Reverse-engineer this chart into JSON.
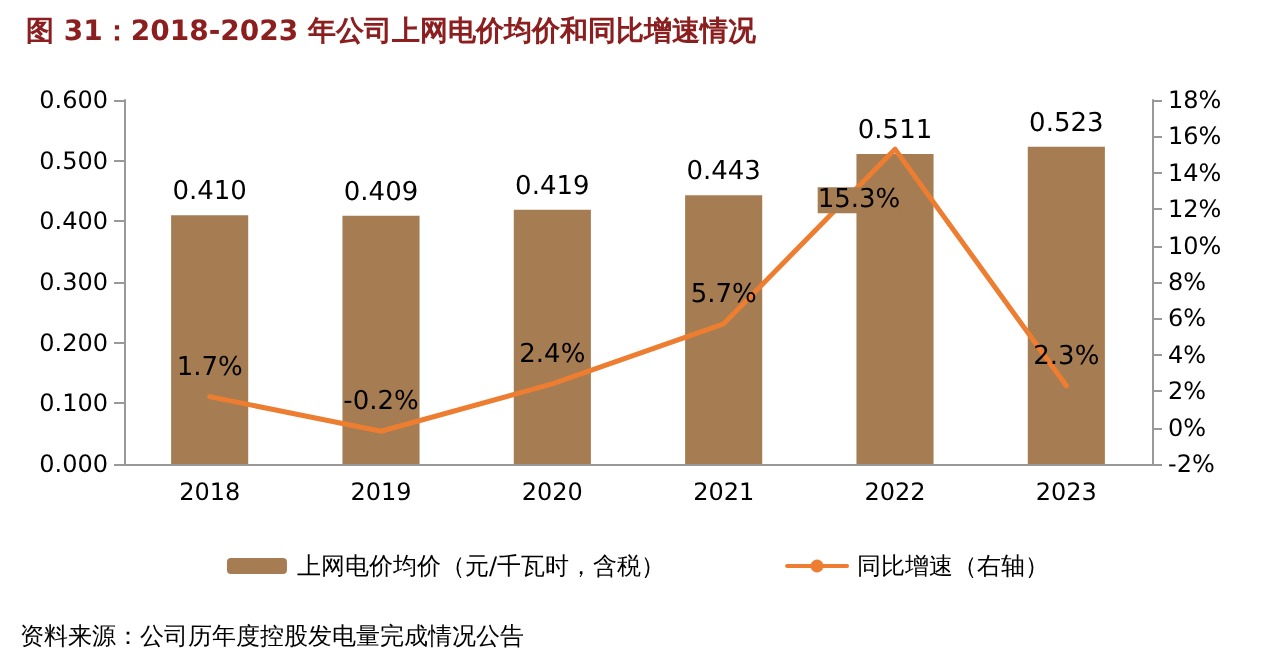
{
  "chart_data": {
    "type": "bar",
    "title": "图 31：2018-2023 年公司上网电价均价和同比增速情况",
    "categories": [
      "2018",
      "2019",
      "2020",
      "2021",
      "2022",
      "2023"
    ],
    "series": [
      {
        "name": "上网电价均价（元/千瓦时，含税）",
        "color": "#a67c52",
        "values": [
          0.41,
          0.409,
          0.419,
          0.443,
          0.511,
          0.523
        ],
        "value_labels": [
          "0.410",
          "0.409",
          "0.419",
          "0.443",
          "0.511",
          "0.523"
        ]
      },
      {
        "name": "同比增速（右轴）",
        "type": "line",
        "axis": "y2",
        "color": "#ed7d31",
        "values": [
          1.7,
          -0.2,
          2.4,
          5.7,
          15.3,
          2.3
        ],
        "value_labels": [
          "1.7%",
          "-0.2%",
          "2.4%",
          "5.7%",
          "15.3%",
          "2.3%"
        ]
      }
    ],
    "ylim": [
      0,
      0.6
    ],
    "yticks": [
      {
        "value": 0,
        "label": "0.000"
      },
      {
        "value": 0.1,
        "label": "0.100"
      },
      {
        "value": 0.2,
        "label": "0.200"
      },
      {
        "value": 0.3,
        "label": "0.300"
      },
      {
        "value": 0.4,
        "label": "0.400"
      },
      {
        "value": 0.5,
        "label": "0.500"
      },
      {
        "value": 0.6,
        "label": "0.600"
      }
    ],
    "y2lim": [
      -2,
      18
    ],
    "y2ticks": [
      {
        "value": -2,
        "label": "-2%"
      },
      {
        "value": 0,
        "label": "0%"
      },
      {
        "value": 2,
        "label": "2%"
      },
      {
        "value": 4,
        "label": "4%"
      },
      {
        "value": 6,
        "label": "6%"
      },
      {
        "value": 8,
        "label": "8%"
      },
      {
        "value": 10,
        "label": "10%"
      },
      {
        "value": 12,
        "label": "12%"
      },
      {
        "value": 14,
        "label": "14%"
      },
      {
        "value": 16,
        "label": "16%"
      },
      {
        "value": 18,
        "label": "18%"
      }
    ],
    "grid": false,
    "legend": "bottom",
    "marker": "none",
    "line_style": "solid",
    "annotations": [
      "资料来源：公司历年度控股发电量完成情况公告"
    ]
  }
}
